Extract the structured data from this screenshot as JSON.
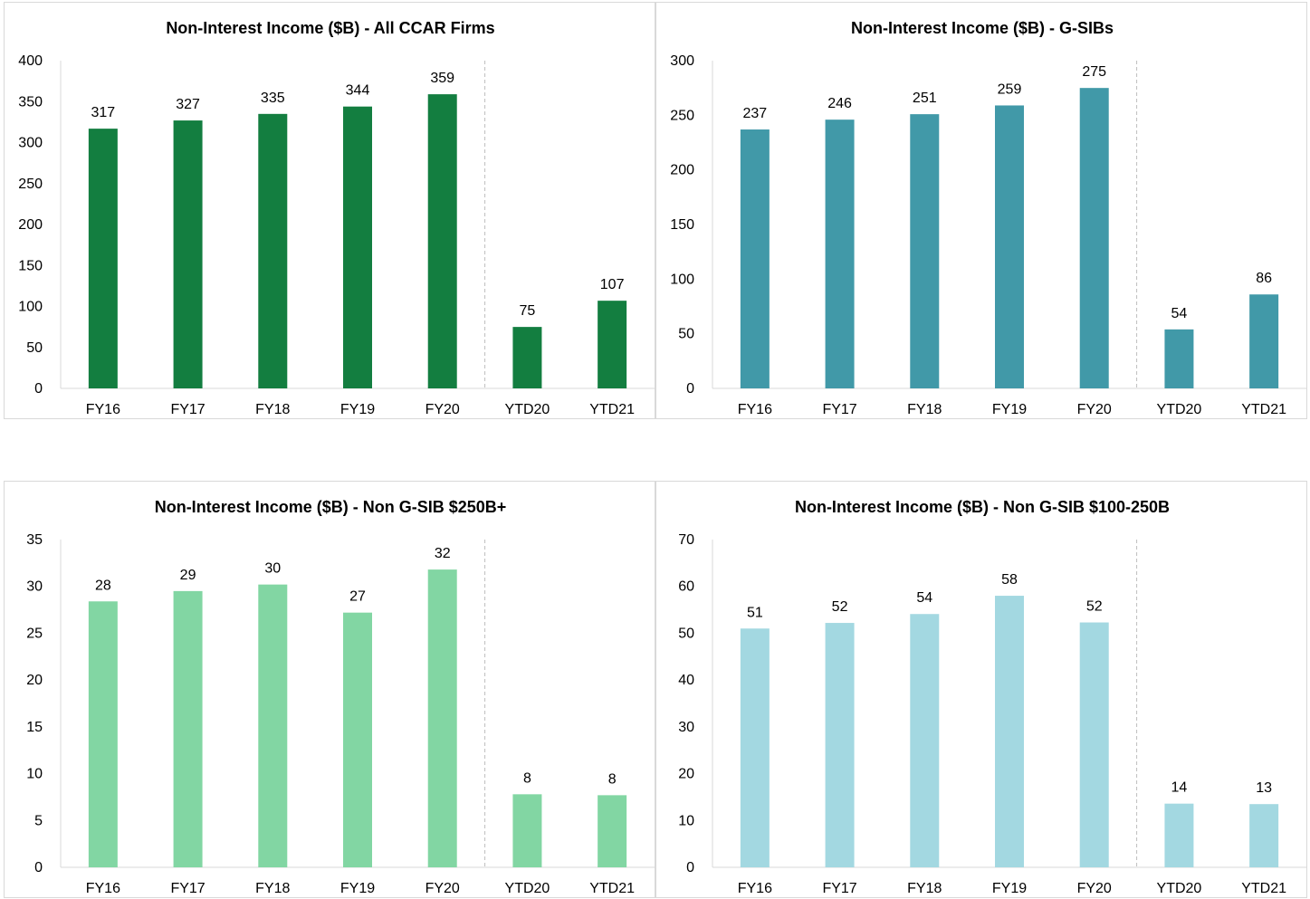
{
  "chart_data": [
    {
      "type": "bar",
      "title": "Non-Interest Income ($B) - All CCAR Firms",
      "categories": [
        "FY16",
        "FY17",
        "FY18",
        "FY19",
        "FY20",
        "YTD20",
        "YTD21"
      ],
      "values": [
        317,
        327,
        335,
        344,
        359,
        75,
        107
      ],
      "data_labels": [
        "317",
        "327",
        "335",
        "344",
        "359",
        "75",
        "107"
      ],
      "ylim": [
        0,
        400
      ],
      "yticks": [
        0,
        50,
        100,
        150,
        200,
        250,
        300,
        350,
        400
      ],
      "color": "#137e40",
      "divider_after": "FY20",
      "grid": false,
      "legend": "none"
    },
    {
      "type": "bar",
      "title": "Non-Interest Income ($B) - G-SIBs",
      "categories": [
        "FY16",
        "FY17",
        "FY18",
        "FY19",
        "FY20",
        "YTD20",
        "YTD21"
      ],
      "values": [
        237,
        246,
        251,
        259,
        275,
        54,
        86
      ],
      "data_labels": [
        "237",
        "246",
        "251",
        "259",
        "275",
        "54",
        "86"
      ],
      "ylim": [
        0,
        300
      ],
      "yticks": [
        0,
        50,
        100,
        150,
        200,
        250,
        300
      ],
      "color": "#4199a8",
      "divider_after": "FY20",
      "grid": false,
      "legend": "none"
    },
    {
      "type": "bar",
      "title": "Non-Interest Income ($B) - Non G-SIB $250B+",
      "categories": [
        "FY16",
        "FY17",
        "FY18",
        "FY19",
        "FY20",
        "YTD20",
        "YTD21"
      ],
      "values": [
        28.4,
        29.5,
        30.2,
        27.2,
        31.8,
        7.8,
        7.7
      ],
      "data_labels": [
        "28",
        "29",
        "30",
        "27",
        "32",
        "8",
        "8"
      ],
      "ylim": [
        0,
        35
      ],
      "yticks": [
        0,
        5,
        10,
        15,
        20,
        25,
        30,
        35
      ],
      "color": "#82d6a3",
      "divider_after": "FY20",
      "grid": false,
      "legend": "none"
    },
    {
      "type": "bar",
      "title": "Non-Interest Income ($B) - Non G-SIB $100-250B",
      "categories": [
        "FY16",
        "FY17",
        "FY18",
        "FY19",
        "FY20",
        "YTD20",
        "YTD21"
      ],
      "values": [
        51,
        52.2,
        54.1,
        58,
        52.3,
        13.6,
        13.5
      ],
      "data_labels": [
        "51",
        "52",
        "54",
        "58",
        "52",
        "14",
        "13"
      ],
      "ylim": [
        0,
        70
      ],
      "yticks": [
        0,
        10,
        20,
        30,
        40,
        50,
        60,
        70
      ],
      "color": "#a3d8e1",
      "divider_after": "FY20",
      "grid": false,
      "legend": "none"
    }
  ]
}
